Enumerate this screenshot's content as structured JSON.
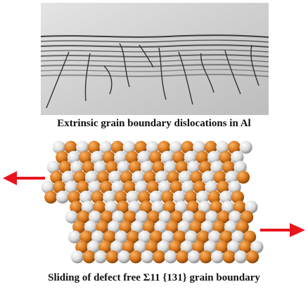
{
  "figure": {
    "caption_top": "Extrinsic grain boundary dislocations in Al",
    "caption_bottom": "Sliding of defect free Σ11 {131} grain boundary"
  },
  "colors": {
    "atom_white": "#e6e6e6",
    "atom_orange": "#d9781c",
    "arrow_red": "#e8141c",
    "micrograph_bg": "#cfcfcf"
  }
}
